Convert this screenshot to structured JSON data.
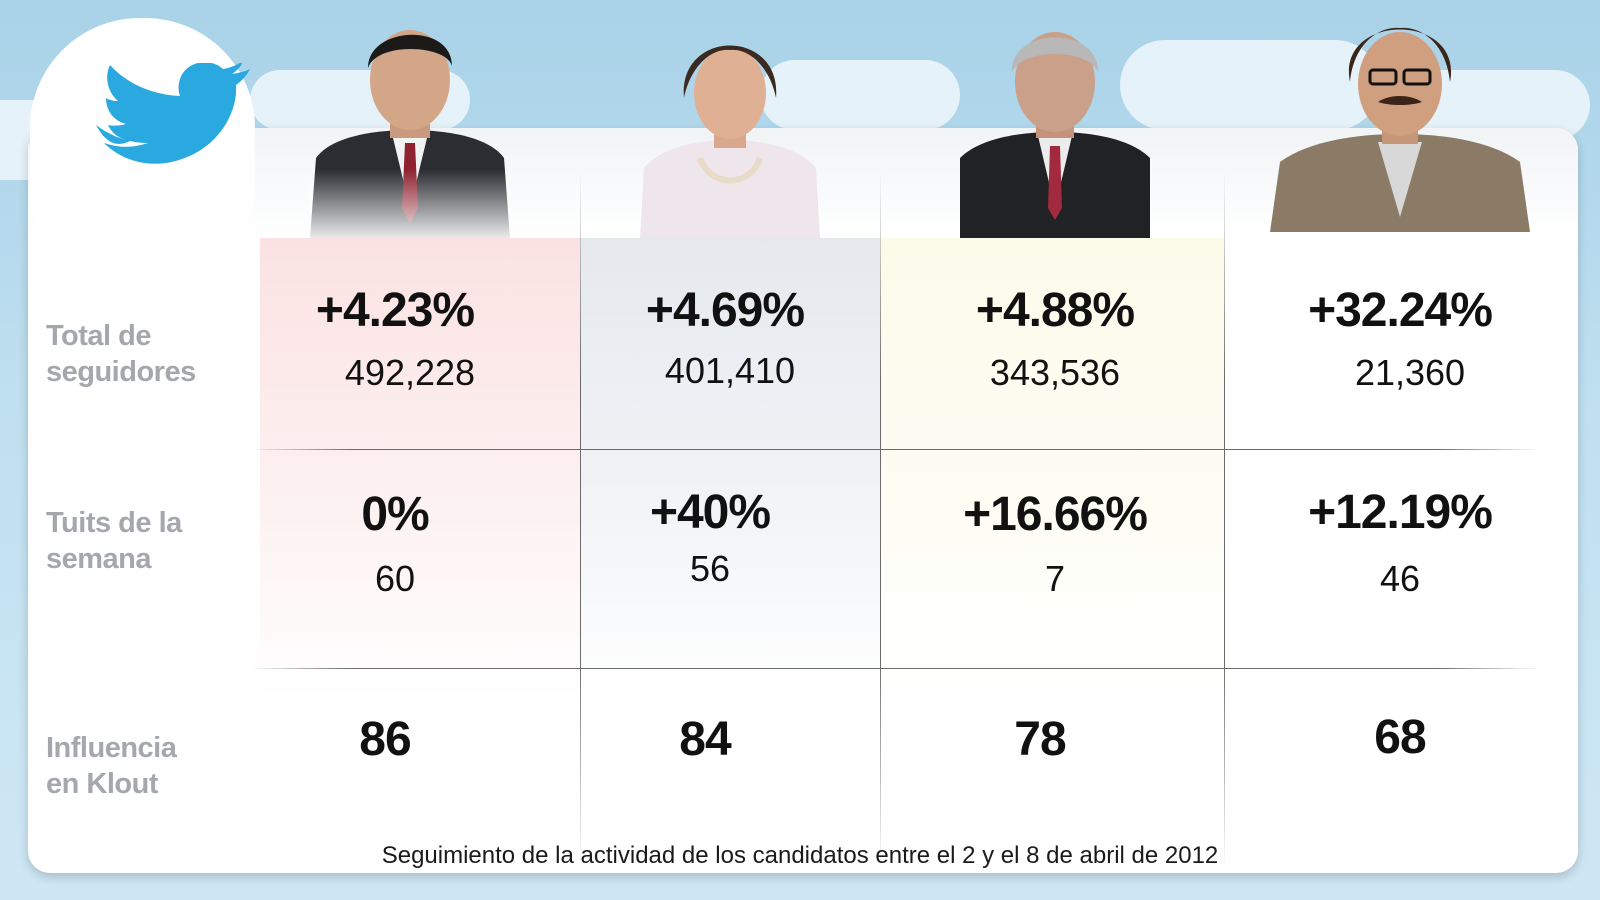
{
  "row_labels": {
    "followers_line1": "Total de",
    "followers_line2": "seguidores",
    "tweets_line1": "Tuits de la",
    "tweets_line2": "semana",
    "klout_line1": "Influencia",
    "klout_line2": "en Klout"
  },
  "candidates": [
    {
      "followers_change": "+4.23%",
      "followers_total": "492,228",
      "tweets_change": "0%",
      "tweets_count": "60",
      "klout": "86"
    },
    {
      "followers_change": "+4.69%",
      "followers_total": "401,410",
      "tweets_change": "+40%",
      "tweets_count": "56",
      "klout": "84"
    },
    {
      "followers_change": "+4.88%",
      "followers_total": "343,536",
      "tweets_change": "+16.66%",
      "tweets_count": "7",
      "klout": "78"
    },
    {
      "followers_change": "+32.24%",
      "followers_total": "21,360",
      "tweets_change": "+12.19%",
      "tweets_count": "46",
      "klout": "68"
    }
  ],
  "footer": "Seguimiento de la actividad de los candidatos entre el 2 y el 8 de abril de 2012",
  "icons": {
    "logo": "twitter-bird-icon"
  },
  "colors": {
    "brand_blue": "#2aa9e0",
    "tint_1": "#fbe2e2",
    "tint_2": "#e5e9ee",
    "tint_3": "#fbfbea",
    "label_grey": "#a4a8ad"
  }
}
